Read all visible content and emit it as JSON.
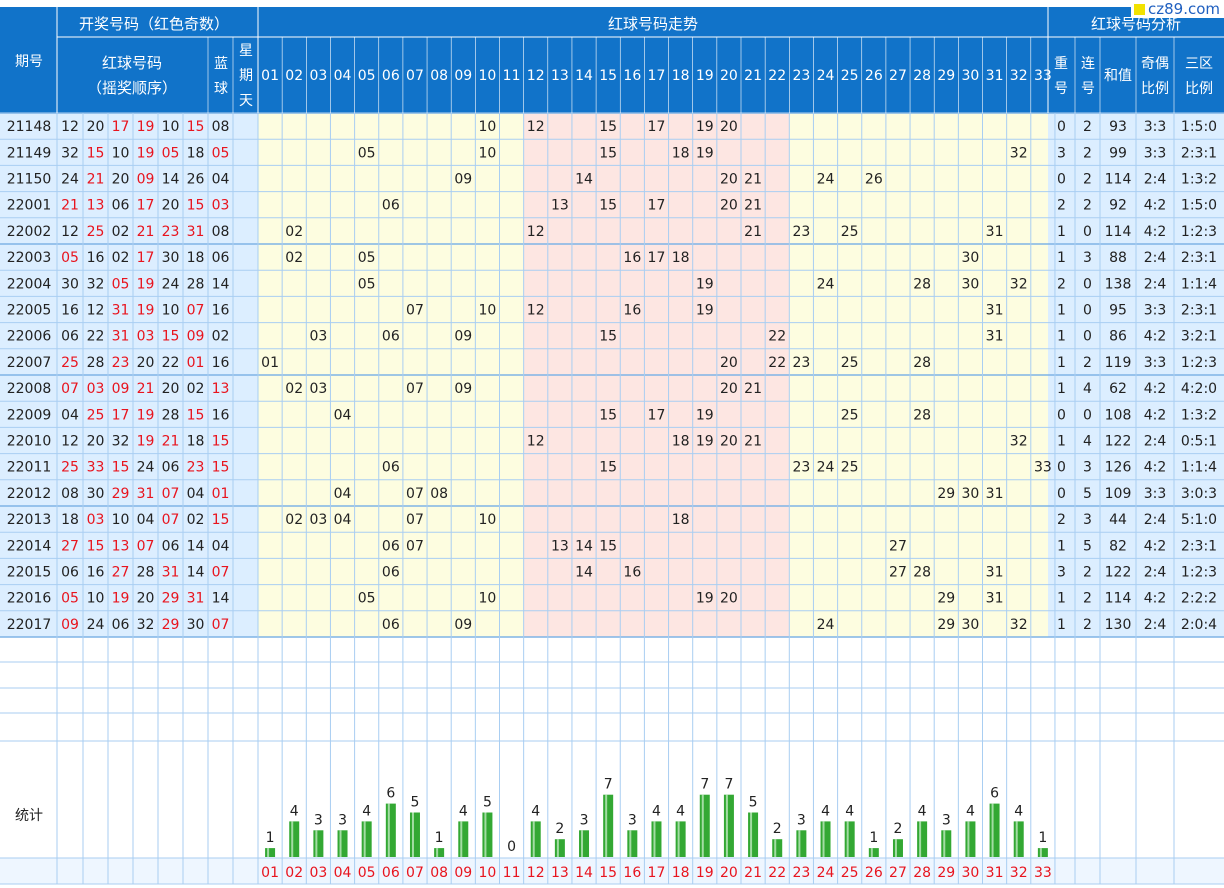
{
  "header": {
    "group_draw": "开奖号码（红色奇数）",
    "group_trend": "红球号码走势",
    "group_analysis": "红球号码分析",
    "issue": "期号",
    "red_title": [
      "红球号码",
      "（摇奖顺序）"
    ],
    "blue": [
      "蓝",
      "球"
    ],
    "weekday": [
      "星",
      "期",
      "天"
    ],
    "repeat": [
      "重",
      "号"
    ],
    "consec": [
      "连",
      "号"
    ],
    "sum": "和值",
    "oe": [
      "奇偶",
      "比例"
    ],
    "zone": [
      "三区",
      "比例"
    ]
  },
  "stats_label": "统计",
  "watermark": "cz89.com",
  "colors": {
    "header_bg": "#1173c9",
    "header_text": "#ffffff",
    "odd_red": "#e8141e",
    "trend_bg": "#fdfde0",
    "trend_mid_bg": "#fde6e2",
    "left_bg": "#dceeff",
    "grid": "#a9cef2",
    "bar": "#33a833"
  },
  "chart_data": {
    "type": "table",
    "rows": [
      {
        "issue": "21148",
        "red": [
          "12",
          "20",
          "17",
          "19",
          "10",
          "15"
        ],
        "blue": "08",
        "trend": [
          "10",
          "12",
          "15",
          "17",
          "19",
          "20"
        ],
        "repeat": "0",
        "consec": "2",
        "sum": "93",
        "oe": "3:3",
        "zone": "1:5:0"
      },
      {
        "issue": "21149",
        "red": [
          "32",
          "15",
          "10",
          "19",
          "05",
          "18"
        ],
        "blue": "05",
        "trend": [
          "05",
          "10",
          "15",
          "18",
          "19",
          "32"
        ],
        "repeat": "3",
        "consec": "2",
        "sum": "99",
        "oe": "3:3",
        "zone": "2:3:1"
      },
      {
        "issue": "21150",
        "red": [
          "24",
          "21",
          "20",
          "09",
          "14",
          "26"
        ],
        "blue": "04",
        "trend": [
          "09",
          "14",
          "20",
          "21",
          "24",
          "26"
        ],
        "repeat": "0",
        "consec": "2",
        "sum": "114",
        "oe": "2:4",
        "zone": "1:3:2"
      },
      {
        "issue": "22001",
        "red": [
          "21",
          "13",
          "06",
          "17",
          "20",
          "15"
        ],
        "blue": "03",
        "trend": [
          "06",
          "13",
          "15",
          "17",
          "20",
          "21"
        ],
        "repeat": "2",
        "consec": "2",
        "sum": "92",
        "oe": "4:2",
        "zone": "1:5:0"
      },
      {
        "issue": "22002",
        "red": [
          "12",
          "25",
          "02",
          "21",
          "23",
          "31"
        ],
        "blue": "08",
        "trend": [
          "02",
          "12",
          "21",
          "23",
          "25",
          "31"
        ],
        "repeat": "1",
        "consec": "0",
        "sum": "114",
        "oe": "4:2",
        "zone": "1:2:3"
      },
      {
        "issue": "22003",
        "red": [
          "05",
          "16",
          "02",
          "17",
          "30",
          "18"
        ],
        "blue": "06",
        "trend": [
          "02",
          "05",
          "16",
          "17",
          "18",
          "30"
        ],
        "repeat": "1",
        "consec": "3",
        "sum": "88",
        "oe": "2:4",
        "zone": "2:3:1"
      },
      {
        "issue": "22004",
        "red": [
          "30",
          "32",
          "05",
          "19",
          "24",
          "28"
        ],
        "blue": "14",
        "trend": [
          "05",
          "19",
          "24",
          "28",
          "30",
          "32"
        ],
        "repeat": "2",
        "consec": "0",
        "sum": "138",
        "oe": "2:4",
        "zone": "1:1:4"
      },
      {
        "issue": "22005",
        "red": [
          "16",
          "12",
          "31",
          "19",
          "10",
          "07"
        ],
        "blue": "16",
        "trend": [
          "07",
          "10",
          "12",
          "16",
          "19",
          "31"
        ],
        "repeat": "1",
        "consec": "0",
        "sum": "95",
        "oe": "3:3",
        "zone": "2:3:1"
      },
      {
        "issue": "22006",
        "red": [
          "06",
          "22",
          "31",
          "03",
          "15",
          "09"
        ],
        "blue": "02",
        "trend": [
          "03",
          "06",
          "09",
          "15",
          "22",
          "31"
        ],
        "repeat": "1",
        "consec": "0",
        "sum": "86",
        "oe": "4:2",
        "zone": "3:2:1"
      },
      {
        "issue": "22007",
        "red": [
          "25",
          "28",
          "23",
          "20",
          "22",
          "01"
        ],
        "blue": "16",
        "trend": [
          "01",
          "20",
          "22",
          "23",
          "25",
          "28"
        ],
        "repeat": "1",
        "consec": "2",
        "sum": "119",
        "oe": "3:3",
        "zone": "1:2:3"
      },
      {
        "issue": "22008",
        "red": [
          "07",
          "03",
          "09",
          "21",
          "20",
          "02"
        ],
        "blue": "13",
        "trend": [
          "02",
          "03",
          "07",
          "09",
          "20",
          "21"
        ],
        "repeat": "1",
        "consec": "4",
        "sum": "62",
        "oe": "4:2",
        "zone": "4:2:0"
      },
      {
        "issue": "22009",
        "red": [
          "04",
          "25",
          "17",
          "19",
          "28",
          "15"
        ],
        "blue": "16",
        "trend": [
          "04",
          "15",
          "17",
          "19",
          "25",
          "28"
        ],
        "repeat": "0",
        "consec": "0",
        "sum": "108",
        "oe": "4:2",
        "zone": "1:3:2"
      },
      {
        "issue": "22010",
        "red": [
          "12",
          "20",
          "32",
          "19",
          "21",
          "18"
        ],
        "blue": "15",
        "trend": [
          "12",
          "18",
          "19",
          "20",
          "21",
          "32"
        ],
        "repeat": "1",
        "consec": "4",
        "sum": "122",
        "oe": "2:4",
        "zone": "0:5:1"
      },
      {
        "issue": "22011",
        "red": [
          "25",
          "33",
          "15",
          "24",
          "06",
          "23"
        ],
        "blue": "15",
        "trend": [
          "06",
          "15",
          "23",
          "24",
          "25",
          "33"
        ],
        "repeat": "0",
        "consec": "3",
        "sum": "126",
        "oe": "4:2",
        "zone": "1:1:4"
      },
      {
        "issue": "22012",
        "red": [
          "08",
          "30",
          "29",
          "31",
          "07",
          "04"
        ],
        "blue": "01",
        "trend": [
          "04",
          "07",
          "08",
          "29",
          "30",
          "31"
        ],
        "repeat": "0",
        "consec": "5",
        "sum": "109",
        "oe": "3:3",
        "zone": "3:0:3"
      },
      {
        "issue": "22013",
        "red": [
          "18",
          "03",
          "10",
          "04",
          "07",
          "02"
        ],
        "blue": "15",
        "trend": [
          "02",
          "03",
          "04",
          "07",
          "10",
          "18"
        ],
        "repeat": "2",
        "consec": "3",
        "sum": "44",
        "oe": "2:4",
        "zone": "5:1:0"
      },
      {
        "issue": "22014",
        "red": [
          "27",
          "15",
          "13",
          "07",
          "06",
          "14"
        ],
        "blue": "04",
        "trend": [
          "06",
          "07",
          "13",
          "14",
          "15",
          "27"
        ],
        "repeat": "1",
        "consec": "5",
        "sum": "82",
        "oe": "4:2",
        "zone": "2:3:1"
      },
      {
        "issue": "22015",
        "red": [
          "06",
          "16",
          "27",
          "28",
          "31",
          "14"
        ],
        "blue": "07",
        "trend": [
          "06",
          "14",
          "16",
          "27",
          "28",
          "31"
        ],
        "repeat": "3",
        "consec": "2",
        "sum": "122",
        "oe": "2:4",
        "zone": "1:2:3"
      },
      {
        "issue": "22016",
        "red": [
          "05",
          "10",
          "19",
          "20",
          "29",
          "31"
        ],
        "blue": "14",
        "trend": [
          "05",
          "10",
          "19",
          "20",
          "29",
          "31"
        ],
        "repeat": "1",
        "consec": "2",
        "sum": "114",
        "oe": "4:2",
        "zone": "2:2:2"
      },
      {
        "issue": "22017",
        "red": [
          "09",
          "24",
          "06",
          "32",
          "29",
          "30"
        ],
        "blue": "07",
        "trend": [
          "06",
          "09",
          "24",
          "29",
          "30",
          "32"
        ],
        "repeat": "1",
        "consec": "2",
        "sum": "130",
        "oe": "2:4",
        "zone": "2:0:4"
      }
    ],
    "numbers": [
      "01",
      "02",
      "03",
      "04",
      "05",
      "06",
      "07",
      "08",
      "09",
      "10",
      "11",
      "12",
      "13",
      "14",
      "15",
      "16",
      "17",
      "18",
      "19",
      "20",
      "21",
      "22",
      "23",
      "24",
      "25",
      "26",
      "27",
      "28",
      "29",
      "30",
      "31",
      "32",
      "33"
    ],
    "counts": [
      1,
      4,
      3,
      3,
      4,
      6,
      5,
      1,
      4,
      5,
      0,
      4,
      2,
      3,
      7,
      3,
      4,
      4,
      7,
      7,
      5,
      2,
      3,
      4,
      4,
      1,
      2,
      4,
      3,
      4,
      6,
      4,
      1
    ],
    "count_max": 7
  }
}
